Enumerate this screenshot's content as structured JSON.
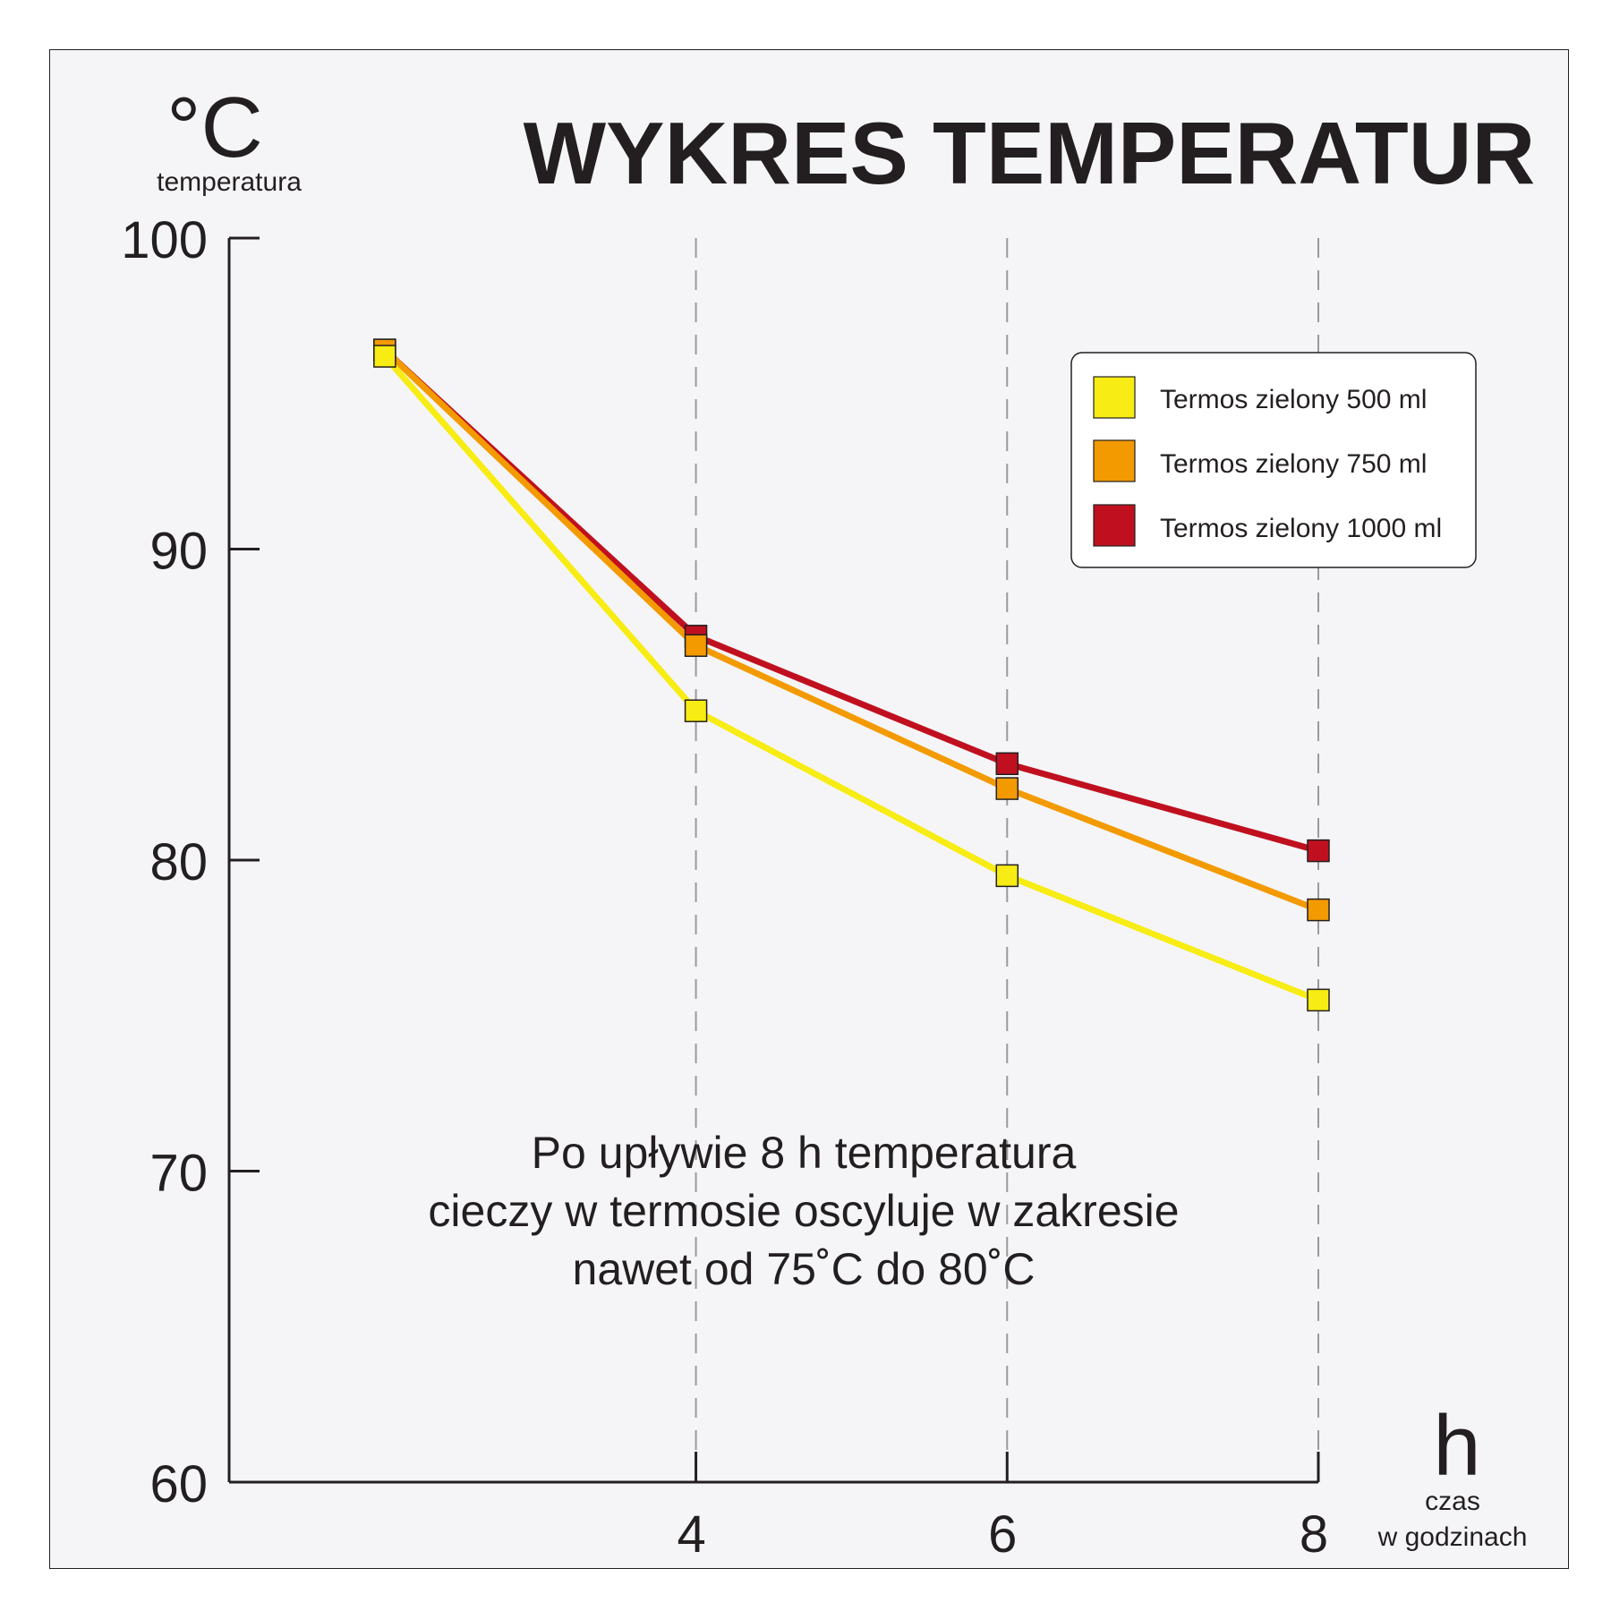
{
  "chart_data": {
    "type": "line",
    "title": "WYKRES TEMPERATUR",
    "y_unit": "°C",
    "ylabel": "temperatura",
    "x_unit": "h",
    "xlabel_line1": "czas",
    "xlabel_line2": "w godzinach",
    "ylim": [
      60,
      100
    ],
    "xlim": [
      1,
      8
    ],
    "y_ticks": [
      60,
      70,
      80,
      90,
      100
    ],
    "x_ticks": [
      4,
      6,
      8
    ],
    "grid_x": true,
    "legend_position": "top-right",
    "x": [
      2,
      4,
      6,
      8
    ],
    "series": [
      {
        "name": "Termos zielony 500 ml",
        "color": "#f7ec13",
        "values": [
          96.2,
          84.8,
          79.5,
          75.5
        ]
      },
      {
        "name": "Termos zielony 750 ml",
        "color": "#f39a00",
        "values": [
          96.4,
          86.9,
          82.3,
          78.4
        ]
      },
      {
        "name": "Termos zielony 1000 ml",
        "color": "#c0101f",
        "values": [
          96.4,
          87.2,
          83.1,
          80.3
        ]
      }
    ],
    "annotation": [
      "Po upływie 8 h temperatura",
      "cieczy w termosie oscyluje w zakresie",
      "nawet od 75˚C do 80˚C"
    ]
  }
}
